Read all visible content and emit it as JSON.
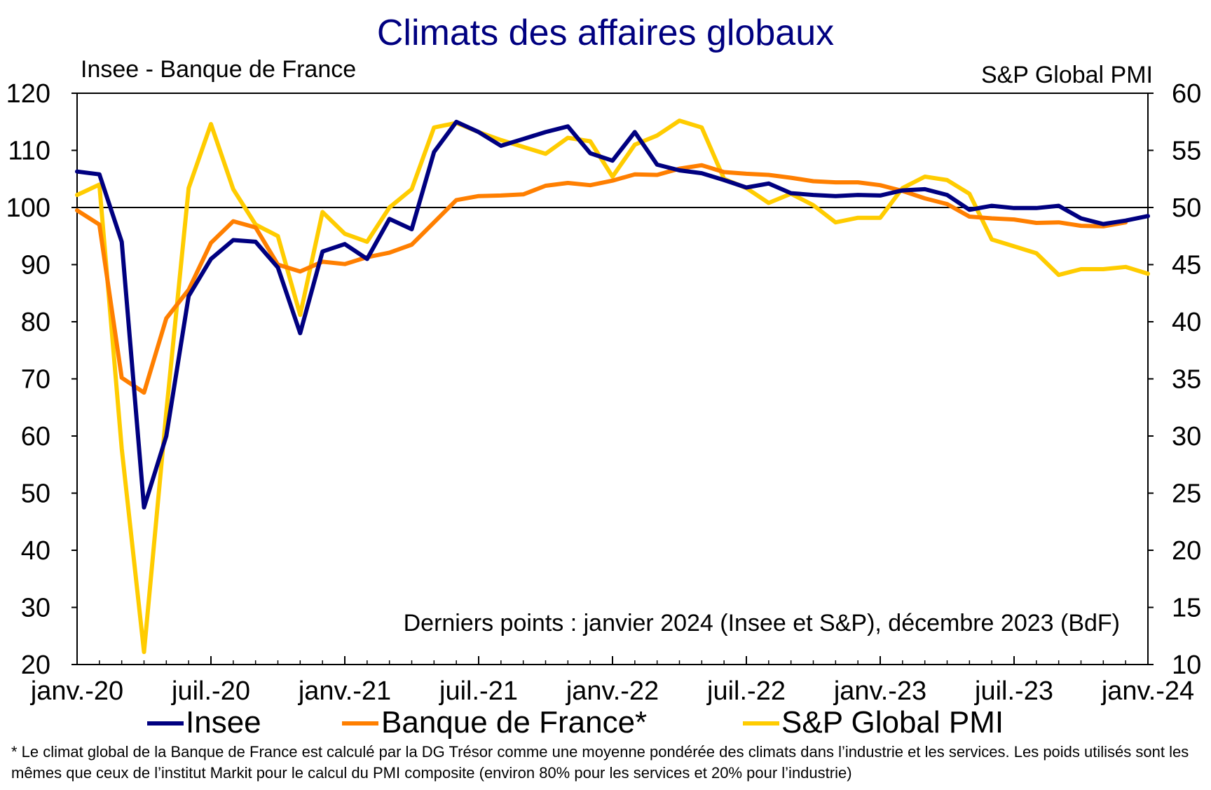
{
  "chart_data": {
    "type": "line",
    "title": "Climats des affaires globaux",
    "left_axis_label": "Insee - Banque de France",
    "right_axis_label": "S&P Global PMI",
    "x_tick_labels": [
      "janv.-20",
      "juil.-20",
      "janv.-21",
      "juil.-21",
      "janv.-22",
      "juil.-22",
      "janv.-23",
      "juil.-23",
      "janv.-24"
    ],
    "y_left_ticks": [
      "20",
      "30",
      "40",
      "50",
      "60",
      "70",
      "80",
      "90",
      "100",
      "110",
      "120"
    ],
    "y_right_ticks": [
      "10",
      "15",
      "20",
      "25",
      "30",
      "35",
      "40",
      "45",
      "50",
      "55",
      "60"
    ],
    "ylim_left": [
      20,
      120
    ],
    "ylim_right": [
      10,
      60
    ],
    "reference_line_left": 100,
    "months": [
      "2020-01",
      "2020-02",
      "2020-03",
      "2020-04",
      "2020-05",
      "2020-06",
      "2020-07",
      "2020-08",
      "2020-09",
      "2020-10",
      "2020-11",
      "2020-12",
      "2021-01",
      "2021-02",
      "2021-03",
      "2021-04",
      "2021-05",
      "2021-06",
      "2021-07",
      "2021-08",
      "2021-09",
      "2021-10",
      "2021-11",
      "2021-12",
      "2022-01",
      "2022-02",
      "2022-03",
      "2022-04",
      "2022-05",
      "2022-06",
      "2022-07",
      "2022-08",
      "2022-09",
      "2022-10",
      "2022-11",
      "2022-12",
      "2023-01",
      "2023-02",
      "2023-03",
      "2023-04",
      "2023-05",
      "2023-06",
      "2023-07",
      "2023-08",
      "2023-09",
      "2023-10",
      "2023-11",
      "2023-12",
      "2024-01"
    ],
    "series": [
      {
        "name": "Insee",
        "axis": "left",
        "color": "#000080",
        "values": [
          106.3,
          105.8,
          94,
          47.5,
          60,
          84.5,
          91,
          94.3,
          94,
          89.5,
          78,
          92.3,
          93.6,
          91,
          98,
          96.2,
          109.7,
          115,
          113.2,
          110.8,
          112,
          113.2,
          114.2,
          109.5,
          108.2,
          113.2,
          107.5,
          106.5,
          106,
          104.8,
          103.5,
          104.2,
          102.5,
          102.2,
          102,
          102.2,
          102.1,
          103,
          103.2,
          102.2,
          99.6,
          100.3,
          99.9,
          99.9,
          100.3,
          98.1,
          97.1,
          97.7,
          98.5
        ]
      },
      {
        "name": "Banque de France*",
        "axis": "left",
        "color": "#ff7f00",
        "values": [
          99.5,
          97,
          70.2,
          67.6,
          80.6,
          85.6,
          93.8,
          97.6,
          96.5,
          90,
          88.8,
          90.5,
          90.1,
          91.3,
          92.1,
          93.5,
          97.4,
          101.3,
          102,
          102.1,
          102.3,
          103.8,
          104.3,
          103.9,
          104.7,
          105.8,
          105.7,
          106.8,
          107.4,
          106.2,
          105.9,
          105.7,
          105.2,
          104.6,
          104.4,
          104.4,
          103.9,
          102.9,
          101.6,
          100.6,
          98.4,
          98.1,
          97.9,
          97.3,
          97.4,
          96.8,
          96.7,
          97.4
        ]
      },
      {
        "name": "S&P Global PMI",
        "axis": "right",
        "color": "#ffcc00",
        "values": [
          51.1,
          52,
          28.9,
          11.1,
          32.1,
          51.7,
          57.3,
          51.6,
          48.5,
          47.5,
          40.6,
          49.6,
          47.7,
          47,
          50,
          51.6,
          57,
          57.4,
          56.6,
          55.9,
          55.3,
          54.7,
          56.1,
          55.8,
          52.7,
          55.5,
          56.3,
          57.6,
          57,
          52.5,
          51.7,
          50.4,
          51.2,
          50.2,
          48.7,
          49.1,
          49.1,
          51.7,
          52.7,
          52.4,
          51.2,
          47.2,
          46.6,
          46,
          44.1,
          44.6,
          44.6,
          44.8,
          44.2
        ]
      }
    ],
    "annotation": "Derniers points : janvier 2024 (Insee et S&P), décembre 2023 (BdF)",
    "legend": [
      "Insee",
      "Banque de France*",
      "S&P Global PMI"
    ],
    "legend_position": "bottom",
    "grid": false
  },
  "footnote": "* Le climat global de la Banque de France est calculé par la DG Trésor comme une moyenne pondérée des climats dans l’industrie et les services. Les poids utilisés sont les mêmes que ceux de l’institut Markit pour le calcul du PMI composite (environ 80% pour les services et 20% pour l’industrie)"
}
